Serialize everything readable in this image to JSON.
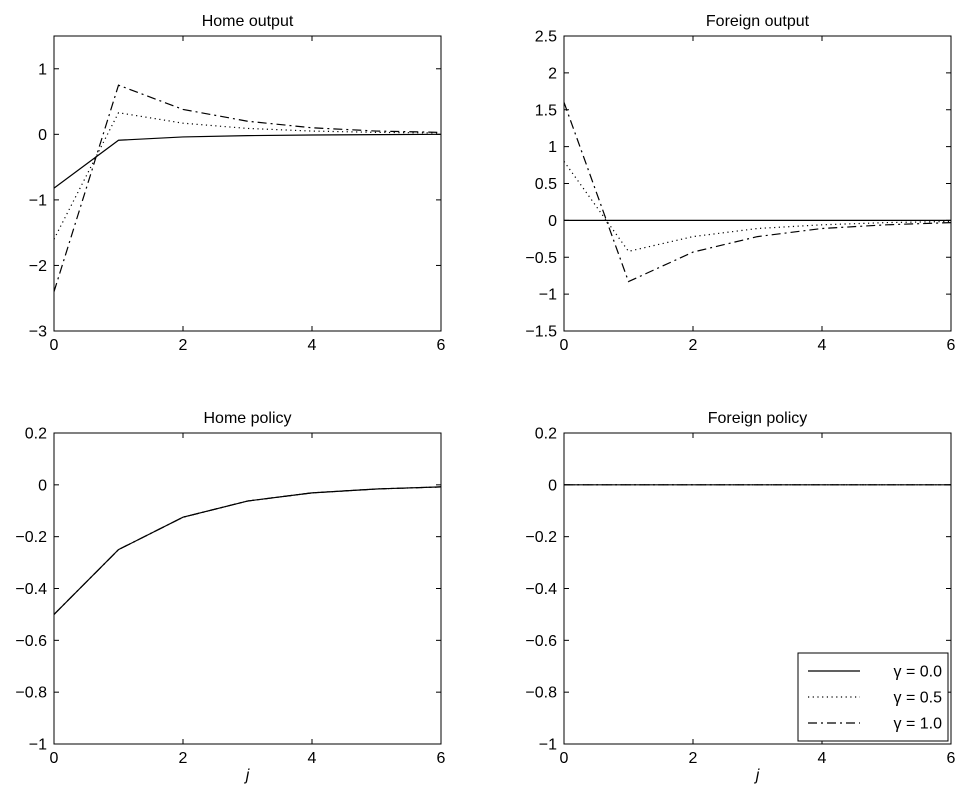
{
  "chart_data": [
    {
      "type": "line",
      "title": "Home output",
      "xlabel": "",
      "ylabel": "",
      "xlim": [
        0,
        6
      ],
      "ylim": [
        -3,
        1.5
      ],
      "xticks": [
        "0",
        "2",
        "4",
        "6"
      ],
      "yticks": [
        "−3",
        "−2",
        "−1",
        "0",
        "1"
      ],
      "ytick_values": [
        -3,
        -2,
        -1,
        0,
        1
      ],
      "xtick_values": [
        0,
        2,
        4,
        6
      ],
      "x": [
        0,
        1,
        2,
        3,
        4,
        5,
        6
      ],
      "series": [
        {
          "name": "γ = 0.0",
          "style": "solid",
          "values": [
            -0.82,
            -0.09,
            -0.04,
            -0.02,
            -0.01,
            -0.005,
            0.0
          ]
        },
        {
          "name": "γ = 0.5",
          "style": "dotted",
          "values": [
            -1.6,
            0.33,
            0.17,
            0.09,
            0.05,
            0.03,
            0.02
          ]
        },
        {
          "name": "γ = 1.0",
          "style": "dashdot",
          "values": [
            -2.4,
            0.75,
            0.38,
            0.2,
            0.1,
            0.05,
            0.03
          ]
        }
      ],
      "grid": false
    },
    {
      "type": "line",
      "title": "Foreign output",
      "xlabel": "",
      "ylabel": "",
      "xlim": [
        0,
        6
      ],
      "ylim": [
        -1.5,
        2.5
      ],
      "xticks": [
        "0",
        "2",
        "4",
        "6"
      ],
      "yticks": [
        "−1.5",
        "−1",
        "−0.5",
        "0",
        "0.5",
        "1",
        "1.5",
        "2",
        "2.5"
      ],
      "ytick_values": [
        -1.5,
        -1,
        -0.5,
        0,
        0.5,
        1,
        1.5,
        2,
        2.5
      ],
      "xtick_values": [
        0,
        2,
        4,
        6
      ],
      "x": [
        0,
        1,
        2,
        3,
        4,
        5,
        6
      ],
      "series": [
        {
          "name": "γ = 0.0",
          "style": "solid",
          "values": [
            0,
            0,
            0,
            0,
            0,
            0,
            0
          ]
        },
        {
          "name": "γ = 0.5",
          "style": "dotted",
          "values": [
            0.8,
            -0.42,
            -0.22,
            -0.11,
            -0.06,
            -0.03,
            -0.015
          ]
        },
        {
          "name": "γ = 1.0",
          "style": "dashdot",
          "values": [
            1.6,
            -0.83,
            -0.43,
            -0.22,
            -0.11,
            -0.06,
            -0.03
          ]
        }
      ],
      "grid": false
    },
    {
      "type": "line",
      "title": "Home policy",
      "xlabel": "j",
      "ylabel": "",
      "xlim": [
        0,
        6
      ],
      "ylim": [
        -1,
        0.2
      ],
      "xticks": [
        "0",
        "2",
        "4",
        "6"
      ],
      "yticks": [
        "−1",
        "−0.8",
        "−0.6",
        "−0.4",
        "−0.2",
        "0",
        "0.2"
      ],
      "ytick_values": [
        -1,
        -0.8,
        -0.6,
        -0.4,
        -0.2,
        0,
        0.2
      ],
      "xtick_values": [
        0,
        2,
        4,
        6
      ],
      "x": [
        0,
        1,
        2,
        3,
        4,
        5,
        6
      ],
      "series": [
        {
          "name": "γ = 0.0",
          "style": "solid",
          "values": [
            -0.5,
            -0.25,
            -0.125,
            -0.0625,
            -0.031,
            -0.016,
            -0.008
          ]
        },
        {
          "name": "γ = 0.5",
          "style": "dotted",
          "values": [
            -0.5,
            -0.25,
            -0.125,
            -0.0625,
            -0.031,
            -0.016,
            -0.008
          ]
        },
        {
          "name": "γ = 1.0",
          "style": "dashdot",
          "values": [
            -0.5,
            -0.25,
            -0.125,
            -0.0625,
            -0.031,
            -0.016,
            -0.008
          ]
        }
      ],
      "grid": false
    },
    {
      "type": "line",
      "title": "Foreign policy",
      "xlabel": "j",
      "ylabel": "",
      "xlim": [
        0,
        6
      ],
      "ylim": [
        -1,
        0.2
      ],
      "xticks": [
        "0",
        "2",
        "4",
        "6"
      ],
      "yticks": [
        "−1",
        "−0.8",
        "−0.6",
        "−0.4",
        "−0.2",
        "0",
        "0.2"
      ],
      "ytick_values": [
        -1,
        -0.8,
        -0.6,
        -0.4,
        -0.2,
        0,
        0.2
      ],
      "xtick_values": [
        0,
        2,
        4,
        6
      ],
      "x": [
        0,
        1,
        2,
        3,
        4,
        5,
        6
      ],
      "series": [
        {
          "name": "γ = 0.0",
          "style": "solid",
          "values": [
            0,
            0,
            0,
            0,
            0,
            0,
            0
          ]
        },
        {
          "name": "γ = 0.5",
          "style": "dotted",
          "values": [
            0,
            0,
            0,
            0,
            0,
            0,
            0
          ]
        },
        {
          "name": "γ = 1.0",
          "style": "dashdot",
          "values": [
            0,
            0,
            0,
            0,
            0,
            0,
            0
          ]
        }
      ],
      "grid": false,
      "legend": {
        "placement": "bottom-right",
        "entries": [
          {
            "label": "γ = 0.0",
            "style": "solid"
          },
          {
            "label": "γ = 0.5",
            "style": "dotted"
          },
          {
            "label": "γ = 1.0",
            "style": "dashdot"
          }
        ]
      }
    }
  ]
}
